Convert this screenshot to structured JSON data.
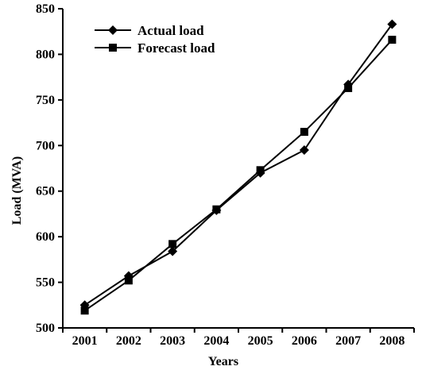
{
  "chart_data": {
    "type": "line",
    "title": "",
    "xlabel": "Years",
    "ylabel": "Load (MVA)",
    "categories": [
      "2001",
      "2002",
      "2003",
      "2004",
      "2005",
      "2006",
      "2007",
      "2008"
    ],
    "ylim": [
      500,
      850
    ],
    "yticks": [
      500,
      550,
      600,
      650,
      700,
      750,
      800,
      850
    ],
    "grid": false,
    "legend_position": "top-left",
    "series": [
      {
        "name": "Actual load",
        "marker": "diamond",
        "color": "#000000",
        "values": [
          525,
          557,
          584,
          629,
          670,
          695,
          767,
          833
        ]
      },
      {
        "name": "Forecast load",
        "marker": "square",
        "color": "#000000",
        "values": [
          519,
          552,
          592,
          630,
          673,
          715,
          763,
          816
        ]
      }
    ]
  }
}
